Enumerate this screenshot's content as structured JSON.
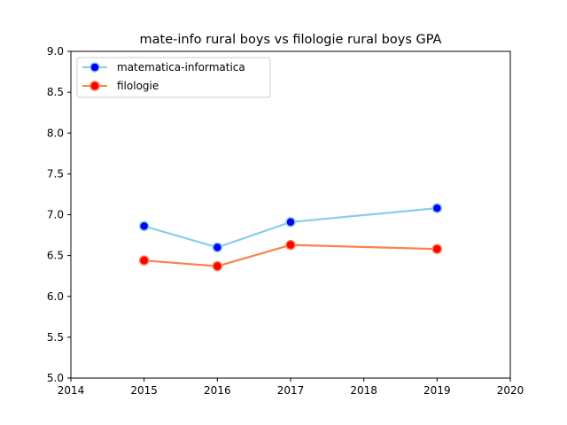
{
  "chart_data": {
    "type": "line",
    "title": "mate-info rural boys vs filologie rural boys GPA",
    "xlabel": "",
    "ylabel": "",
    "xlim": [
      2014,
      2020
    ],
    "ylim": [
      5.0,
      9.0
    ],
    "x_ticks": [
      "2014",
      "2015",
      "2016",
      "2017",
      "2018",
      "2019",
      "2020"
    ],
    "y_ticks": [
      "5.0",
      "5.5",
      "6.0",
      "6.5",
      "7.0",
      "7.5",
      "8.0",
      "8.5",
      "9.0"
    ],
    "grid": false,
    "legend_position": "top-left",
    "series": [
      {
        "name": "matematica-informatica",
        "line_color": "#87ceeb",
        "marker_color": "#0000ff",
        "x": [
          2015,
          2016,
          2017,
          2019
        ],
        "y": [
          6.86,
          6.6,
          6.91,
          7.08
        ]
      },
      {
        "name": "filologie",
        "line_color": "#ff7f50",
        "marker_color": "#ff0000",
        "x": [
          2015,
          2016,
          2017,
          2019
        ],
        "y": [
          6.44,
          6.37,
          6.63,
          6.58
        ]
      }
    ]
  }
}
